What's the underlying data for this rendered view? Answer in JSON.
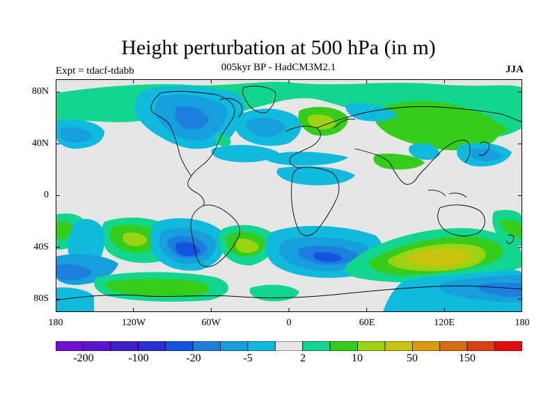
{
  "title": "Height perturbation at 500 hPa (in m)",
  "subtitle": "005kyr BP - HadCM3M2.1",
  "left_label": "Expt = tdacf-tdabb",
  "right_label": "JJA",
  "lat_labels": [
    "80N",
    "40N",
    "0",
    "40S",
    "80S"
  ],
  "lon_labels": [
    "180",
    "120W",
    "60W",
    "0",
    "60E",
    "120E",
    "180"
  ],
  "colorbar": {
    "colors": [
      "#6f0fd6",
      "#5a16cf",
      "#4020cd",
      "#2b2fd5",
      "#1554e0",
      "#1d7fdd",
      "#169fdc",
      "#0fbadd",
      "#e6e6e6",
      "#12d68d",
      "#35cc1c",
      "#9bd312",
      "#cbc20f",
      "#d99b10",
      "#d86c10",
      "#d93f11",
      "#e50a0a"
    ],
    "labels": [
      "-200",
      "-100",
      "-20",
      "-5",
      "2",
      "10",
      "50",
      "150"
    ]
  },
  "legend": {
    "colors": {
      "positive_2_10": "#12d68d",
      "positive_10_50": "#35cc1c",
      "positive_50_150": "#9bd312",
      "positive_150": "#cbc20f",
      "negative_5_2": "#0fbadd",
      "negative_20_5": "#169fdc",
      "negative_100_20": "#1d7fdd",
      "negative_200_100": "#1554e0",
      "neutral": "#e6e6e6",
      "coastline": "#000000"
    }
  }
}
